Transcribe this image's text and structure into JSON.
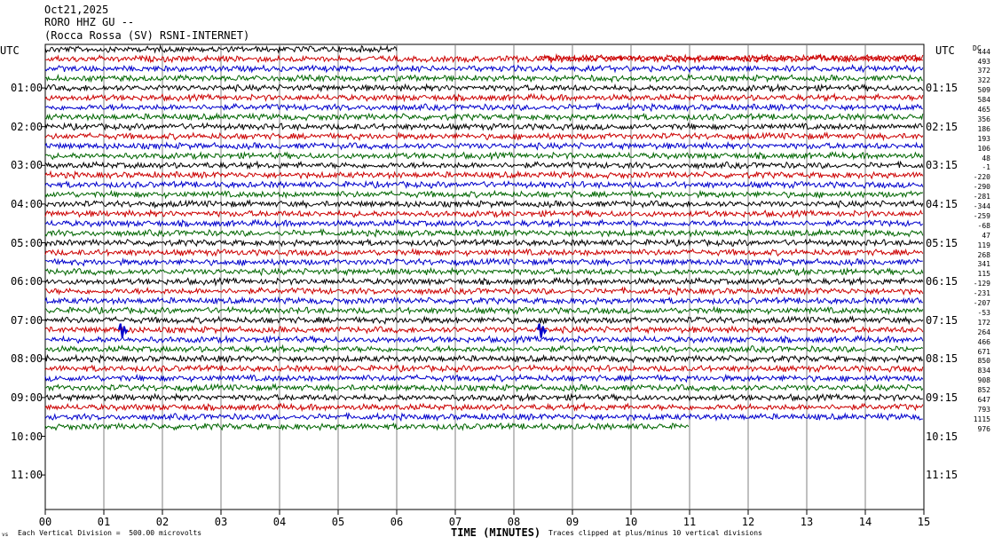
{
  "header": {
    "date": "Oct21,2025",
    "station": "RORO HHZ GU --",
    "location": "(Rocca Rossa (SV) RSNI-INTERNET)"
  },
  "utc_left": "UTC",
  "utc_right": "UTC",
  "corner_label": "DC",
  "tiny_label": "vs",
  "left_hours": [
    "01:00",
    "02:00",
    "03:00",
    "04:00",
    "05:00",
    "06:00",
    "07:00",
    "08:00",
    "09:00",
    "10:00",
    "11:00"
  ],
  "right_hours": [
    "01:15",
    "02:15",
    "03:15",
    "04:15",
    "05:15",
    "06:15",
    "07:15",
    "08:15",
    "09:15",
    "10:15",
    "11:15"
  ],
  "trace_counts": [
    "444",
    "493",
    "372",
    "322",
    "509",
    "584",
    "465",
    "356",
    "186",
    "193",
    "106",
    "48",
    "-1",
    "-220",
    "-290",
    "-281",
    "-344",
    "-259",
    "-68",
    "47",
    "119",
    "268",
    "341",
    "115",
    "-129",
    "-231",
    "-207",
    "-53",
    "172",
    "264",
    "466",
    "671",
    "850",
    "834",
    "908",
    "852",
    "647",
    "793",
    "1115",
    "976"
  ],
  "colors": {
    "black": "#000000",
    "red": "#cc0000",
    "blue": "#0000cc",
    "green": "#006600",
    "grid": "#808080"
  },
  "chart_data": {
    "type": "line",
    "title": "Oct21,2025 RORO HHZ GU -- (Rocca Rossa (SV) RSNI-INTERNET)",
    "xlabel": "TIME (MINUTES)",
    "ylabel": "UTC",
    "x_ticks": [
      "00",
      "01",
      "02",
      "03",
      "04",
      "05",
      "06",
      "07",
      "08",
      "09",
      "10",
      "11",
      "12",
      "13",
      "14",
      "15"
    ],
    "xlim": [
      0,
      15
    ],
    "trace_interval_minutes": 15,
    "color_cycle": [
      "black",
      "red",
      "blue",
      "green"
    ],
    "traces_total": 40,
    "first_trace_start_minute": 0,
    "first_trace_end_minute": 6,
    "second_trace_start_minute": 8.4,
    "last_trace_end_minute": 11,
    "events": [
      {
        "trace": 29,
        "minute": 1.3,
        "color": "blue"
      },
      {
        "trace": 29,
        "minute": 8.45,
        "color": "blue"
      }
    ],
    "scale_note": "Each Vertical Division =  500.00 microvolts",
    "clip_note": "Traces clipped at plus/minus 10 vertical divisions"
  },
  "footer": {
    "scale": "Each Vertical Division =  500.00 microvolts",
    "time_label": "TIME (MINUTES)",
    "clip": "Traces clipped at plus/minus 10 vertical divisions"
  }
}
